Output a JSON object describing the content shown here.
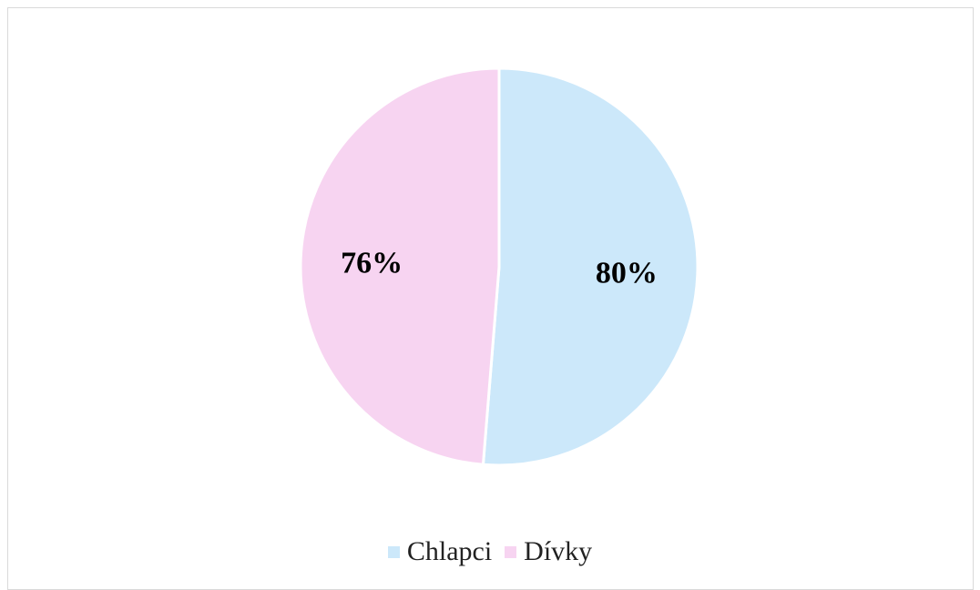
{
  "chart_data": {
    "type": "pie",
    "title": "",
    "slices": [
      {
        "name": "Chlapci",
        "value": 80,
        "label": "80%",
        "color": "#cce8fa"
      },
      {
        "name": "Dívky",
        "value": 76,
        "label": "76%",
        "color": "#f7d4f1"
      }
    ],
    "legend": "bottom",
    "slice_border_color": "#ffffff"
  }
}
